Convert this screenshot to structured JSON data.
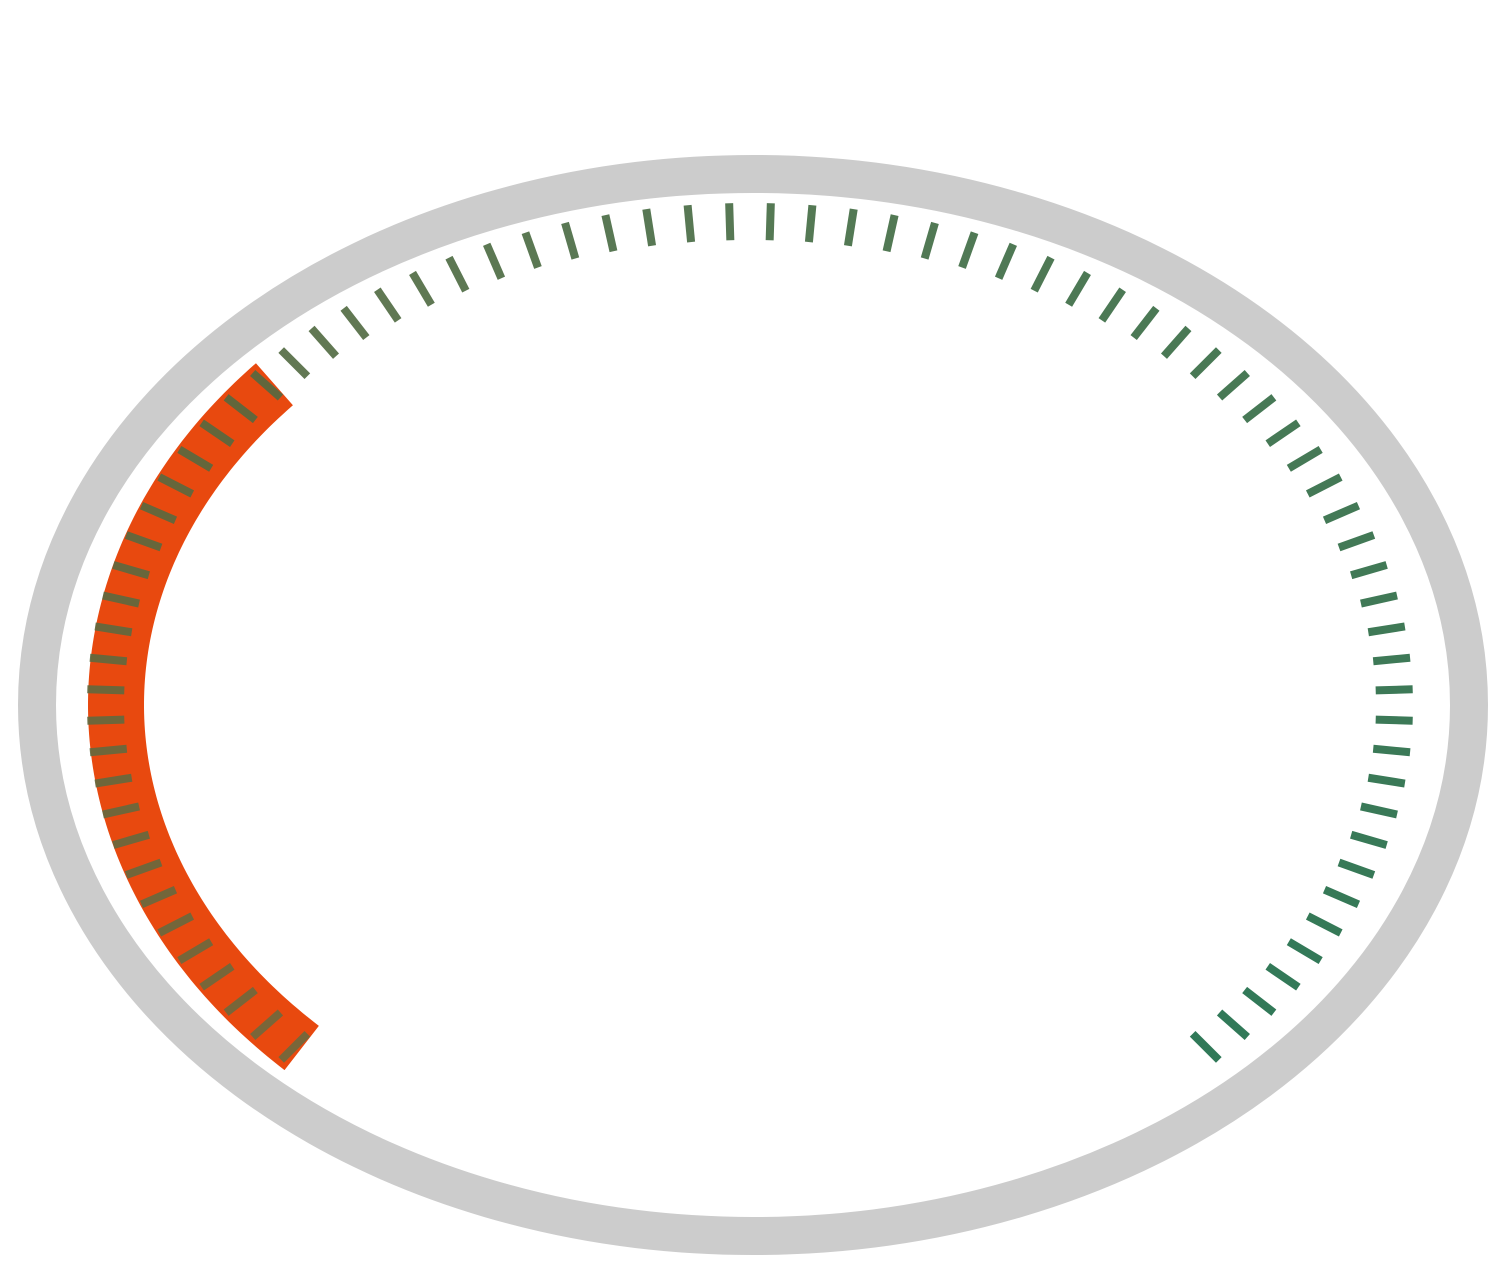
{
  "chart_data": {
    "type": "gauge",
    "value": 32,
    "ylim": [
      0,
      100
    ],
    "color": "#e8490f"
  }
}
